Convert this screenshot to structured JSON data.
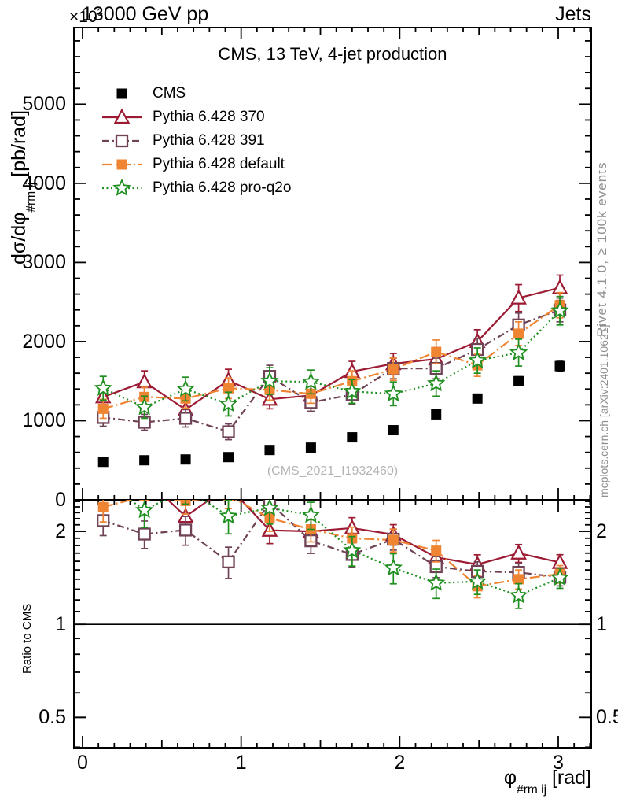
{
  "header": {
    "left": "13000 GeV pp",
    "right": "Jets"
  },
  "panel_title": "CMS, 13 TeV, 4-jet production",
  "watermark": "(CMS_2021_I1932460)",
  "side_notes": {
    "top_right": "Rivet 4.1.0, ≥ 100k events",
    "bottom_right": "mcplots.cern.ch [arXiv:2401.10621]"
  },
  "colors": {
    "cms": "#000000",
    "pythia_370": "#9c1b33",
    "pythia_391": "#6f4256",
    "pythia_default": "#ef8432",
    "pythia_proq2o": "#1f8f1f",
    "note_gray": "#8f8f8f",
    "watermark_gray": "#b4b4b4"
  },
  "axes": {
    "main_y": {
      "title_prefix": "dσ/dφ",
      "title_sub": "#rm ij",
      "title_suffix": " [pb/rad]",
      "multiplier_base": "×10",
      "multiplier_exp": "3",
      "scale": "linear",
      "range": [
        0,
        5970
      ],
      "ticks": [
        {
          "v": 0,
          "label": "0"
        },
        {
          "v": 1000,
          "label": "1000"
        },
        {
          "v": 2000,
          "label": "2000"
        },
        {
          "v": 3000,
          "label": "3000"
        },
        {
          "v": 4000,
          "label": "4000"
        },
        {
          "v": 5000,
          "label": "5000"
        }
      ]
    },
    "ratio_y": {
      "title": "Ratio to CMS",
      "scale": "log",
      "range": [
        0.4,
        2.53
      ],
      "ticks": [
        {
          "v": 0.5,
          "label": "0.5"
        },
        {
          "v": 1,
          "label": "1"
        },
        {
          "v": 2,
          "label": "2"
        }
      ]
    },
    "x": {
      "title_prefix": "φ",
      "title_sub": "#rm ij",
      "title_suffix": " [rad]",
      "scale": "linear",
      "range": [
        -0.055,
        3.21
      ],
      "ticks": [
        {
          "v": 0,
          "label": "0"
        },
        {
          "v": 1,
          "label": "1"
        },
        {
          "v": 2,
          "label": "2"
        },
        {
          "v": 3,
          "label": "3"
        }
      ]
    }
  },
  "chart_data": {
    "type": "line",
    "title": "CMS, 13 TeV, 4-jet production",
    "xlabel": "φ_#rm ij [rad]",
    "ylabel": "dσ/dφ_#rm ij [pb/rad] ×10³",
    "ratio_ylabel": "Ratio to CMS",
    "ylim": [
      0,
      5970
    ],
    "ratio_ylim": [
      0.4,
      2.53
    ],
    "xlim": [
      -0.055,
      3.21
    ],
    "legend_position": "top-left",
    "grid": false,
    "x": [
      0.13,
      0.39,
      0.65,
      0.92,
      1.18,
      1.44,
      1.7,
      1.96,
      2.23,
      2.49,
      2.75,
      3.01
    ],
    "ratio_reference": "CMS",
    "series": [
      {
        "name": "CMS",
        "color": "#000000",
        "marker": "square_filled",
        "line": "none",
        "values": [
          480,
          500,
          510,
          540,
          630,
          660,
          790,
          880,
          1080,
          1280,
          1500,
          1690
        ],
        "yerr": [
          25,
          25,
          25,
          25,
          30,
          30,
          35,
          40,
          45,
          50,
          55,
          60
        ]
      },
      {
        "name": "Pythia 6.428 370",
        "color": "#9c1b33",
        "marker": "triangle_open",
        "line": "solid",
        "values": [
          1300,
          1490,
          1140,
          1510,
          1270,
          1320,
          1620,
          1720,
          1780,
          2000,
          2550,
          2680
        ],
        "yerr": [
          130,
          140,
          110,
          140,
          120,
          120,
          130,
          130,
          140,
          150,
          170,
          160
        ]
      },
      {
        "name": "Pythia 6.428 391",
        "color": "#6f4256",
        "marker": "square_open",
        "line": "dashdot",
        "values": [
          1040,
          980,
          1030,
          860,
          1560,
          1230,
          1330,
          1660,
          1660,
          1900,
          2210,
          2400
        ],
        "yerr": [
          110,
          100,
          110,
          100,
          140,
          110,
          120,
          130,
          130,
          140,
          150,
          150
        ]
      },
      {
        "name": "Pythia 6.428 default",
        "color": "#ef8432",
        "marker": "square_filled",
        "line": "longdashdot",
        "values": [
          1150,
          1300,
          1280,
          1410,
          1390,
          1340,
          1500,
          1650,
          1870,
          1700,
          2100,
          2460
        ],
        "yerr": [
          120,
          120,
          120,
          130,
          130,
          120,
          130,
          140,
          150,
          140,
          150,
          160
        ]
      },
      {
        "name": "Pythia 6.428 pro-q2o",
        "color": "#1f8f1f",
        "marker": "star_open",
        "line": "dotted",
        "values": [
          1410,
          1170,
          1400,
          1210,
          1500,
          1490,
          1370,
          1340,
          1470,
          1760,
          1860,
          2390
        ],
        "yerr": [
          150,
          140,
          150,
          150,
          170,
          150,
          150,
          150,
          160,
          160,
          170,
          180
        ]
      }
    ]
  }
}
